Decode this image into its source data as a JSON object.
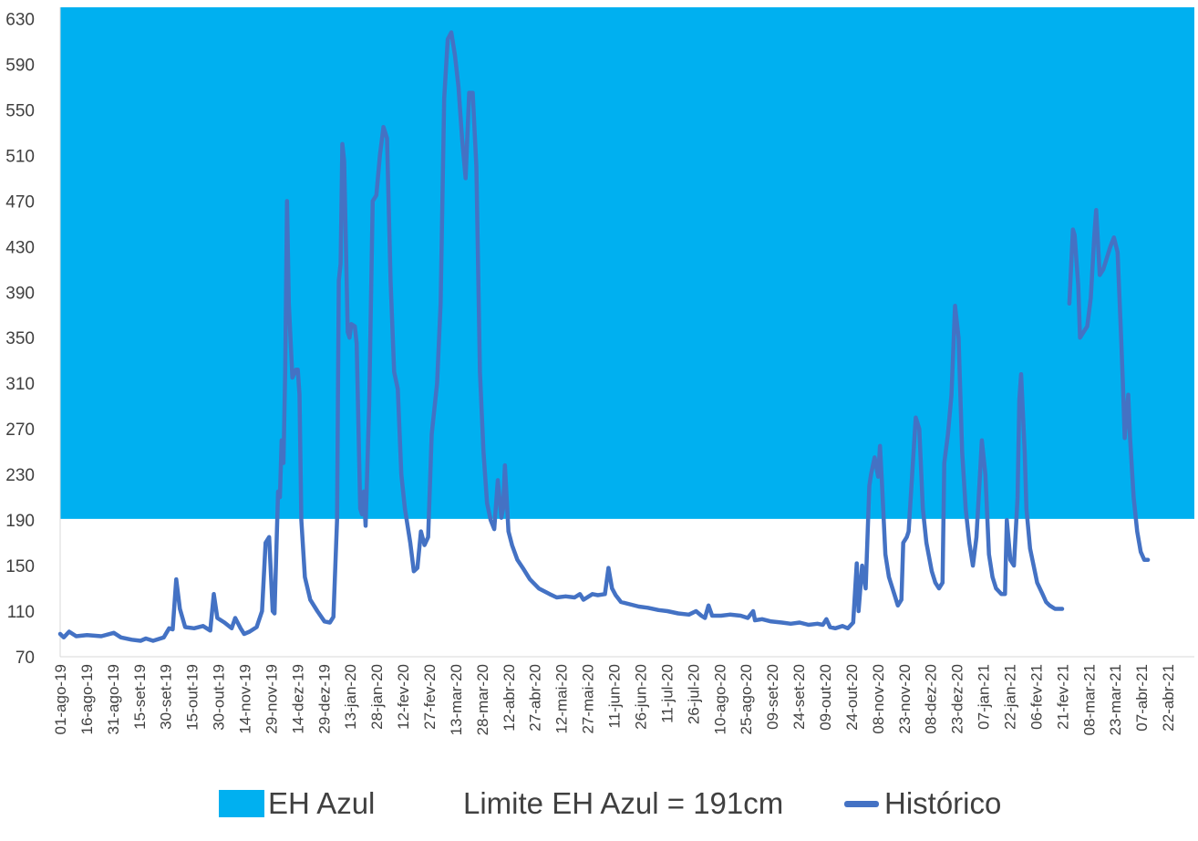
{
  "chart_data": {
    "type": "line",
    "ylim": [
      70,
      640
    ],
    "yticks": [
      70,
      110,
      150,
      190,
      230,
      270,
      310,
      350,
      390,
      430,
      470,
      510,
      550,
      590,
      630
    ],
    "x_start": "2019-08-01",
    "x_end": "2021-04-27",
    "x_tick_labels": [
      "01-ago-19",
      "16-ago-19",
      "31-ago-19",
      "15-set-19",
      "30-set-19",
      "15-out-19",
      "30-out-19",
      "14-nov-19",
      "29-nov-19",
      "14-dez-19",
      "29-dez-19",
      "13-jan-20",
      "28-jan-20",
      "12-fev-20",
      "27-fev-20",
      "13-mar-20",
      "28-mar-20",
      "12-abr-20",
      "27-abr-20",
      "12-mai-20",
      "27-mai-20",
      "11-jun-20",
      "26-jun-20",
      "11-jul-20",
      "26-jul-20",
      "10-ago-20",
      "25-ago-20",
      "09-set-20",
      "24-set-20",
      "09-out-20",
      "24-out-20",
      "08-nov-20",
      "23-nov-20",
      "08-dez-20",
      "23-dez-20",
      "07-jan-21",
      "22-jan-21",
      "06-fev-21",
      "21-fev-21",
      "08-mar-21",
      "23-mar-21",
      "07-abr-21",
      "22-abr-21"
    ],
    "threshold": {
      "value": 191,
      "color": "#00B0F0"
    },
    "series": [
      {
        "name": "Histórico",
        "color": "#4472C4",
        "segments": [
          [
            [
              "2019-08-01",
              90
            ],
            [
              "2019-08-03",
              87
            ],
            [
              "2019-08-06",
              92
            ],
            [
              "2019-08-10",
              88
            ],
            [
              "2019-08-16",
              89
            ],
            [
              "2019-08-24",
              88
            ],
            [
              "2019-08-31",
              91
            ],
            [
              "2019-09-04",
              87
            ],
            [
              "2019-09-10",
              85
            ],
            [
              "2019-09-15",
              84
            ],
            [
              "2019-09-18",
              86
            ],
            [
              "2019-09-22",
              84
            ],
            [
              "2019-09-28",
              87
            ],
            [
              "2019-10-01",
              95
            ],
            [
              "2019-10-03",
              94
            ],
            [
              "2019-10-05",
              138
            ],
            [
              "2019-10-07",
              112
            ],
            [
              "2019-10-10",
              96
            ],
            [
              "2019-10-15",
              95
            ],
            [
              "2019-10-20",
              97
            ],
            [
              "2019-10-24",
              93
            ],
            [
              "2019-10-26",
              125
            ],
            [
              "2019-10-28",
              104
            ],
            [
              "2019-11-01",
              100
            ],
            [
              "2019-11-05",
              95
            ],
            [
              "2019-11-07",
              104
            ],
            [
              "2019-11-10",
              95
            ],
            [
              "2019-11-12",
              90
            ],
            [
              "2019-11-15",
              92
            ],
            [
              "2019-11-19",
              96
            ],
            [
              "2019-11-22",
              110
            ],
            [
              "2019-11-24",
              170
            ],
            [
              "2019-11-26",
              175
            ],
            [
              "2019-11-28",
              110
            ],
            [
              "2019-11-29",
              108
            ],
            [
              "2019-12-01",
              215
            ],
            [
              "2019-12-02",
              210
            ],
            [
              "2019-12-03",
              260
            ],
            [
              "2019-12-04",
              240
            ],
            [
              "2019-12-05",
              320
            ],
            [
              "2019-12-06",
              470
            ],
            [
              "2019-12-07",
              380
            ],
            [
              "2019-12-09",
              315
            ],
            [
              "2019-12-11",
              322
            ],
            [
              "2019-12-12",
              322
            ],
            [
              "2019-12-13",
              300
            ],
            [
              "2019-12-14",
              190
            ],
            [
              "2019-12-16",
              140
            ],
            [
              "2019-12-19",
              120
            ],
            [
              "2019-12-23",
              110
            ],
            [
              "2019-12-27",
              101
            ],
            [
              "2019-12-30",
              100
            ],
            [
              "2020-01-01",
              105
            ],
            [
              "2020-01-03",
              190
            ],
            [
              "2020-01-04",
              400
            ],
            [
              "2020-01-05",
              415
            ],
            [
              "2020-01-06",
              520
            ],
            [
              "2020-01-07",
              505
            ],
            [
              "2020-01-09",
              355
            ],
            [
              "2020-01-10",
              350
            ],
            [
              "2020-01-11",
              362
            ],
            [
              "2020-01-13",
              360
            ],
            [
              "2020-01-14",
              345
            ],
            [
              "2020-01-16",
              200
            ],
            [
              "2020-01-17",
              195
            ],
            [
              "2020-01-18",
              215
            ],
            [
              "2020-01-19",
              185
            ],
            [
              "2020-01-21",
              290
            ],
            [
              "2020-01-23",
              470
            ],
            [
              "2020-01-25",
              475
            ],
            [
              "2020-01-27",
              510
            ],
            [
              "2020-01-29",
              535
            ],
            [
              "2020-01-31",
              525
            ],
            [
              "2020-02-02",
              400
            ],
            [
              "2020-02-04",
              320
            ],
            [
              "2020-02-06",
              305
            ],
            [
              "2020-02-08",
              230
            ],
            [
              "2020-02-10",
              200
            ],
            [
              "2020-02-13",
              170
            ],
            [
              "2020-02-15",
              145
            ],
            [
              "2020-02-17",
              148
            ],
            [
              "2020-02-19",
              180
            ],
            [
              "2020-02-21",
              168
            ],
            [
              "2020-02-23",
              175
            ],
            [
              "2020-02-25",
              265
            ],
            [
              "2020-02-28",
              310
            ],
            [
              "2020-03-01",
              380
            ],
            [
              "2020-03-03",
              560
            ],
            [
              "2020-03-05",
              612
            ],
            [
              "2020-03-07",
              618
            ],
            [
              "2020-03-09",
              598
            ],
            [
              "2020-03-11",
              570
            ],
            [
              "2020-03-13",
              525
            ],
            [
              "2020-03-15",
              490
            ],
            [
              "2020-03-17",
              565
            ],
            [
              "2020-03-19",
              565
            ],
            [
              "2020-03-21",
              500
            ],
            [
              "2020-03-23",
              320
            ],
            [
              "2020-03-25",
              250
            ],
            [
              "2020-03-27",
              205
            ],
            [
              "2020-03-29",
              190
            ],
            [
              "2020-03-31",
              182
            ],
            [
              "2020-04-02",
              225
            ],
            [
              "2020-04-04",
              192
            ],
            [
              "2020-04-05",
              200
            ],
            [
              "2020-04-06",
              238
            ],
            [
              "2020-04-08",
              180
            ],
            [
              "2020-04-10",
              168
            ],
            [
              "2020-04-13",
              155
            ],
            [
              "2020-04-16",
              148
            ],
            [
              "2020-04-20",
              138
            ],
            [
              "2020-04-25",
              130
            ],
            [
              "2020-05-01",
              125
            ],
            [
              "2020-05-05",
              122
            ],
            [
              "2020-05-10",
              123
            ],
            [
              "2020-05-15",
              122
            ],
            [
              "2020-05-18",
              125
            ],
            [
              "2020-05-20",
              120
            ],
            [
              "2020-05-25",
              125
            ],
            [
              "2020-05-28",
              124
            ],
            [
              "2020-06-01",
              125
            ],
            [
              "2020-06-03",
              148
            ],
            [
              "2020-06-05",
              130
            ],
            [
              "2020-06-07",
              124
            ],
            [
              "2020-06-10",
              118
            ],
            [
              "2020-06-15",
              116
            ],
            [
              "2020-06-20",
              114
            ],
            [
              "2020-06-25",
              113
            ],
            [
              "2020-07-01",
              111
            ],
            [
              "2020-07-06",
              110
            ],
            [
              "2020-07-12",
              108
            ],
            [
              "2020-07-18",
              107
            ],
            [
              "2020-07-22",
              110
            ],
            [
              "2020-07-25",
              106
            ],
            [
              "2020-07-27",
              104
            ],
            [
              "2020-07-29",
              115
            ],
            [
              "2020-07-31",
              106
            ],
            [
              "2020-08-05",
              106
            ],
            [
              "2020-08-10",
              107
            ],
            [
              "2020-08-16",
              106
            ],
            [
              "2020-08-20",
              104
            ],
            [
              "2020-08-23",
              110
            ],
            [
              "2020-08-24",
              102
            ],
            [
              "2020-08-28",
              103
            ],
            [
              "2020-09-02",
              101
            ],
            [
              "2020-09-08",
              100
            ],
            [
              "2020-09-13",
              99
            ],
            [
              "2020-09-18",
              100
            ],
            [
              "2020-09-23",
              98
            ],
            [
              "2020-09-28",
              99
            ],
            [
              "2020-10-01",
              98
            ],
            [
              "2020-10-03",
              103
            ],
            [
              "2020-10-05",
              96
            ],
            [
              "2020-10-08",
              95
            ],
            [
              "2020-10-12",
              97
            ],
            [
              "2020-10-15",
              95
            ],
            [
              "2020-10-18",
              100
            ],
            [
              "2020-10-20",
              152
            ],
            [
              "2020-10-21",
              110
            ],
            [
              "2020-10-23",
              150
            ],
            [
              "2020-10-25",
              130
            ],
            [
              "2020-10-27",
              220
            ],
            [
              "2020-10-28",
              230
            ],
            [
              "2020-10-30",
              245
            ],
            [
              "2020-11-01",
              228
            ],
            [
              "2020-11-02",
              255
            ],
            [
              "2020-11-03",
              225
            ],
            [
              "2020-11-05",
              160
            ],
            [
              "2020-11-07",
              140
            ],
            [
              "2020-11-10",
              125
            ],
            [
              "2020-11-12",
              115
            ],
            [
              "2020-11-14",
              120
            ],
            [
              "2020-11-15",
              170
            ],
            [
              "2020-11-17",
              175
            ],
            [
              "2020-11-18",
              180
            ],
            [
              "2020-11-20",
              230
            ],
            [
              "2020-11-22",
              280
            ],
            [
              "2020-11-24",
              270
            ],
            [
              "2020-11-26",
              200
            ],
            [
              "2020-11-28",
              170
            ],
            [
              "2020-12-01",
              145
            ],
            [
              "2020-12-03",
              135
            ],
            [
              "2020-12-05",
              130
            ],
            [
              "2020-12-07",
              135
            ],
            [
              "2020-12-08",
              240
            ],
            [
              "2020-12-10",
              265
            ],
            [
              "2020-12-12",
              300
            ],
            [
              "2020-12-14",
              378
            ],
            [
              "2020-12-16",
              350
            ],
            [
              "2020-12-18",
              250
            ],
            [
              "2020-12-20",
              200
            ],
            [
              "2020-12-22",
              170
            ],
            [
              "2020-12-24",
              150
            ],
            [
              "2020-12-26",
              175
            ],
            [
              "2020-12-28",
              230
            ],
            [
              "2020-12-29",
              260
            ],
            [
              "2020-12-31",
              230
            ],
            [
              "2021-01-02",
              160
            ],
            [
              "2021-01-04",
              140
            ],
            [
              "2021-01-06",
              130
            ],
            [
              "2021-01-09",
              125
            ],
            [
              "2021-01-11",
              125
            ],
            [
              "2021-01-12",
              190
            ],
            [
              "2021-01-14",
              155
            ],
            [
              "2021-01-16",
              150
            ],
            [
              "2021-01-18",
              210
            ],
            [
              "2021-01-19",
              295
            ],
            [
              "2021-01-20",
              318
            ],
            [
              "2021-01-22",
              250
            ],
            [
              "2021-01-23",
              200
            ],
            [
              "2021-01-25",
              165
            ],
            [
              "2021-01-27",
              150
            ],
            [
              "2021-01-29",
              135
            ],
            [
              "2021-02-01",
              125
            ],
            [
              "2021-02-03",
              118
            ],
            [
              "2021-02-05",
              115
            ],
            [
              "2021-02-08",
              112
            ],
            [
              "2021-02-12",
              112
            ]
          ],
          [
            [
              "2021-02-16",
              380
            ],
            [
              "2021-02-18",
              445
            ],
            [
              "2021-02-19",
              440
            ],
            [
              "2021-02-21",
              395
            ],
            [
              "2021-02-22",
              350
            ],
            [
              "2021-02-24",
              355
            ],
            [
              "2021-02-26",
              360
            ],
            [
              "2021-02-28",
              385
            ],
            [
              "2021-03-02",
              440
            ],
            [
              "2021-03-03",
              462
            ],
            [
              "2021-03-05",
              405
            ],
            [
              "2021-03-07",
              410
            ],
            [
              "2021-03-09",
              420
            ],
            [
              "2021-03-11",
              430
            ],
            [
              "2021-03-13",
              438
            ],
            [
              "2021-03-15",
              425
            ],
            [
              "2021-03-17",
              350
            ],
            [
              "2021-03-18",
              310
            ],
            [
              "2021-03-19",
              262
            ],
            [
              "2021-03-21",
              300
            ],
            [
              "2021-03-22",
              262
            ],
            [
              "2021-03-24",
              210
            ],
            [
              "2021-03-26",
              180
            ],
            [
              "2021-03-28",
              162
            ],
            [
              "2021-03-30",
              155
            ],
            [
              "2021-04-01",
              155
            ]
          ]
        ]
      }
    ]
  },
  "legend": {
    "area_label": "EH Azul",
    "limit_label": "Limite EH Azul = 191cm",
    "line_label": "Histórico"
  }
}
